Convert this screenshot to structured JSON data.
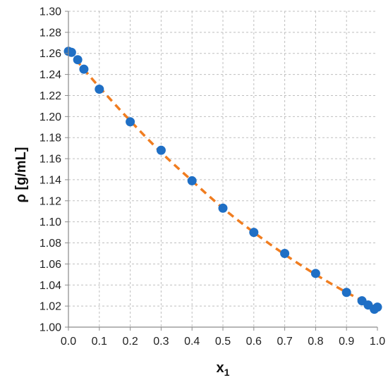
{
  "chart_data": {
    "type": "scatter",
    "xlabel": "x",
    "xlabel_subscript": "1",
    "ylabel": "ρ [g/mL]",
    "xlim": [
      0.0,
      1.0
    ],
    "ylim": [
      1.0,
      1.3
    ],
    "x_ticks": [
      "0.0",
      "0.1",
      "0.2",
      "0.3",
      "0.4",
      "0.5",
      "0.6",
      "0.7",
      "0.8",
      "0.9",
      "1.0"
    ],
    "y_ticks": [
      "1.00",
      "1.02",
      "1.04",
      "1.06",
      "1.08",
      "1.10",
      "1.12",
      "1.14",
      "1.16",
      "1.18",
      "1.20",
      "1.22",
      "1.24",
      "1.26",
      "1.28",
      "1.30"
    ],
    "grid": true,
    "grid_style": "dashed",
    "colors": {
      "points": "#1f6fc5",
      "fit_line": "#f07d20",
      "grid": "#bfbfbf"
    },
    "series": [
      {
        "type": "scatter",
        "points": [
          {
            "x": 0.0,
            "y": 1.262
          },
          {
            "x": 0.01,
            "y": 1.261
          },
          {
            "x": 0.03,
            "y": 1.254
          },
          {
            "x": 0.05,
            "y": 1.245
          },
          {
            "x": 0.1,
            "y": 1.226
          },
          {
            "x": 0.2,
            "y": 1.195
          },
          {
            "x": 0.3,
            "y": 1.168
          },
          {
            "x": 0.4,
            "y": 1.139
          },
          {
            "x": 0.5,
            "y": 1.113
          },
          {
            "x": 0.6,
            "y": 1.09
          },
          {
            "x": 0.7,
            "y": 1.07
          },
          {
            "x": 0.8,
            "y": 1.051
          },
          {
            "x": 0.9,
            "y": 1.033
          },
          {
            "x": 0.95,
            "y": 1.025
          },
          {
            "x": 0.97,
            "y": 1.021
          },
          {
            "x": 0.99,
            "y": 1.017
          },
          {
            "x": 1.0,
            "y": 1.019
          }
        ]
      },
      {
        "type": "line",
        "style": "dashed",
        "points": [
          {
            "x": 0.0,
            "y": 1.263
          },
          {
            "x": 0.05,
            "y": 1.245
          },
          {
            "x": 0.1,
            "y": 1.228
          },
          {
            "x": 0.2,
            "y": 1.196
          },
          {
            "x": 0.3,
            "y": 1.166
          },
          {
            "x": 0.4,
            "y": 1.139
          },
          {
            "x": 0.5,
            "y": 1.113
          },
          {
            "x": 0.6,
            "y": 1.09
          },
          {
            "x": 0.7,
            "y": 1.069
          },
          {
            "x": 0.8,
            "y": 1.05
          },
          {
            "x": 0.9,
            "y": 1.033
          },
          {
            "x": 1.0,
            "y": 1.018
          }
        ]
      }
    ]
  }
}
